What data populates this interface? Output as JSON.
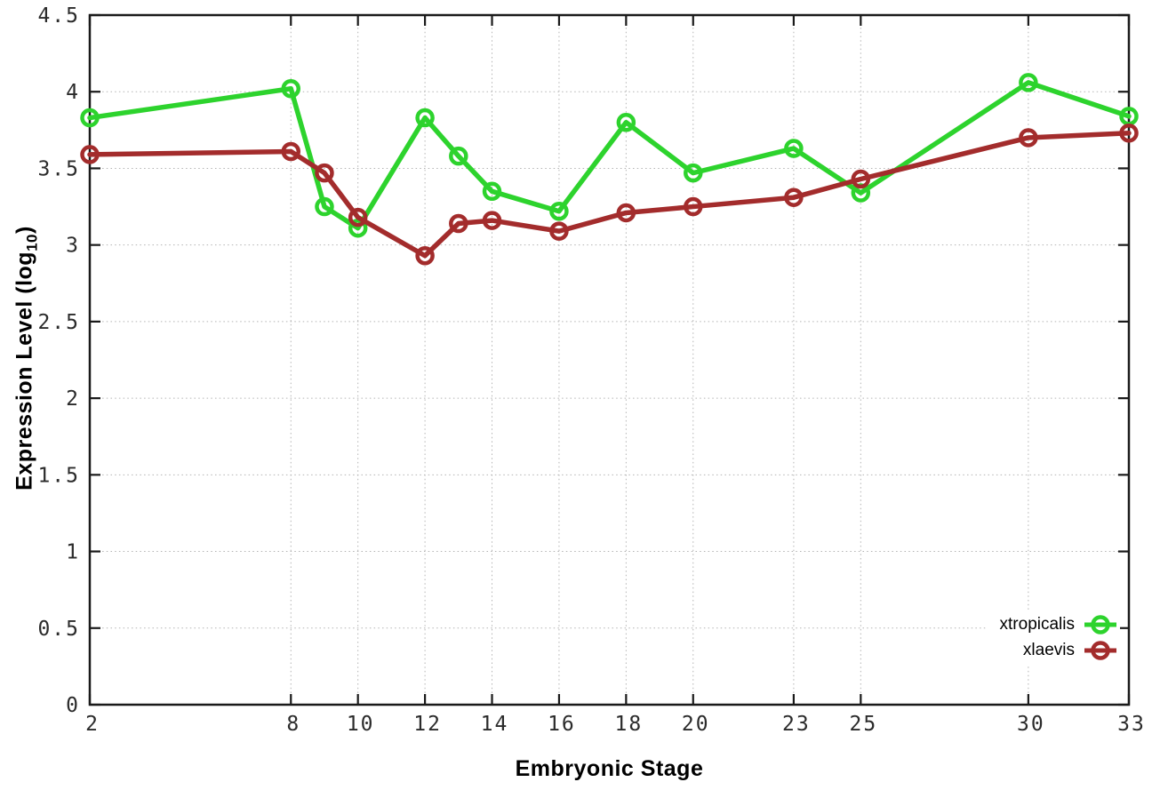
{
  "chart_data": {
    "type": "line",
    "title": "",
    "xlabel": "Embryonic Stage",
    "ylabel": "Expression Level (log10)",
    "ylabel_parts": {
      "main": "Expression Level (log",
      "sub": "10",
      "close": ")"
    },
    "x": [
      2,
      8,
      9,
      10,
      12,
      13,
      14,
      16,
      18,
      20,
      23,
      25,
      30,
      33
    ],
    "x_tick_labels": [
      2,
      8,
      10,
      12,
      14,
      16,
      18,
      20,
      23,
      25,
      30,
      33
    ],
    "y_ticks": [
      0,
      0.5,
      1,
      1.5,
      2,
      2.5,
      3,
      3.5,
      4,
      4.5
    ],
    "xlim": [
      2,
      33
    ],
    "ylim": [
      0,
      4.5
    ],
    "grid": true,
    "grid_style": "dotted",
    "legend_position": "bottom-right",
    "series": [
      {
        "name": "xtropicalis",
        "color": "#2dd32d",
        "marker": "open-circle",
        "values": [
          3.83,
          4.02,
          3.25,
          3.11,
          3.83,
          3.58,
          3.35,
          3.22,
          3.8,
          3.47,
          3.63,
          3.34,
          4.06,
          3.84
        ]
      },
      {
        "name": "xlaevis",
        "color": "#a32c2c",
        "marker": "open-circle",
        "values": [
          3.59,
          3.61,
          3.47,
          3.18,
          2.93,
          3.14,
          3.16,
          3.09,
          3.21,
          3.25,
          3.31,
          3.43,
          3.7,
          3.73
        ]
      }
    ]
  },
  "style": {
    "background": "#ffffff",
    "axis_color": "#1a1a1a",
    "grid_color": "#b3b3b3",
    "tick_label_color": "#2b2b2b"
  }
}
